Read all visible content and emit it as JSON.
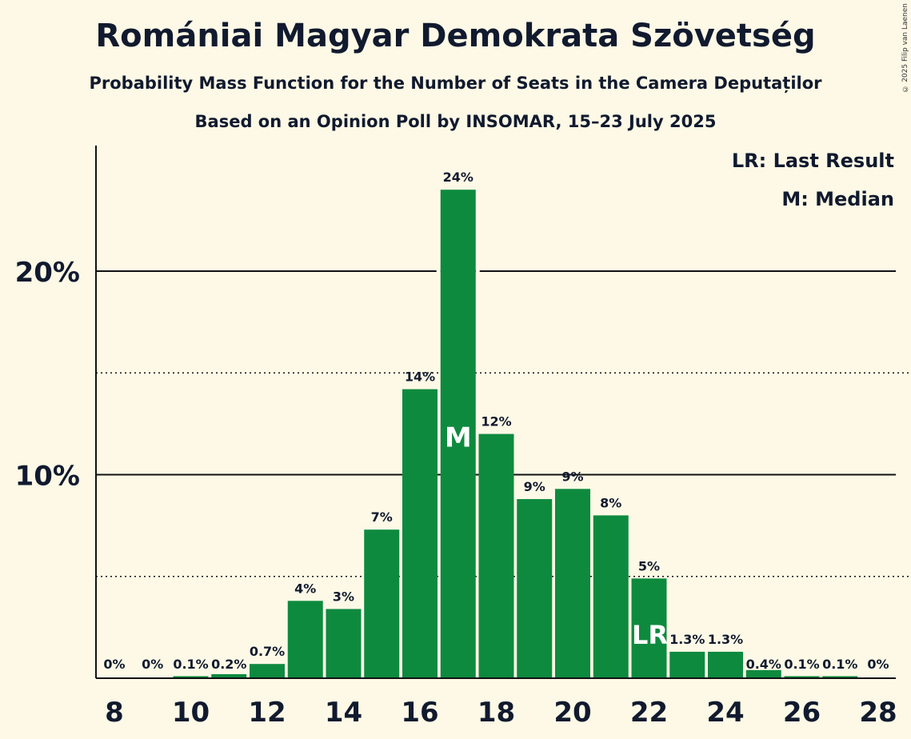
{
  "title": "Romániai Magyar Demokrata Szövetség",
  "subtitle1": "Probability Mass Function for the Number of Seats in the Camera Deputaților",
  "subtitle2": "Based on an Opinion Poll by INSOMAR, 15–23 July 2025",
  "copyright": "© 2025 Filip van Laenen",
  "legend": {
    "lr": "LR: Last Result",
    "m": "M: Median"
  },
  "colors": {
    "bar": "#0e8a3f",
    "background": "#fdf9e6",
    "text": "#111a2e"
  },
  "chart_data": {
    "type": "bar",
    "x": [
      8,
      9,
      10,
      11,
      12,
      13,
      14,
      15,
      16,
      17,
      18,
      19,
      20,
      21,
      22,
      23,
      24,
      25,
      26,
      27,
      28
    ],
    "values": [
      0,
      0,
      0.1,
      0.2,
      0.7,
      3.8,
      3.4,
      7.3,
      14.2,
      24.0,
      12.0,
      8.8,
      9.3,
      8.0,
      4.9,
      1.3,
      1.3,
      0.4,
      0.1,
      0.1,
      0
    ],
    "labels": [
      "0%",
      "0%",
      "0.1%",
      "0.2%",
      "0.7%",
      "4%",
      "3%",
      "7%",
      "14%",
      "24%",
      "12%",
      "9%",
      "9%",
      "8%",
      "5%",
      "1.3%",
      "1.3%",
      "0.4%",
      "0.1%",
      "0.1%",
      "0%"
    ],
    "xticks": [
      "8",
      "10",
      "12",
      "14",
      "16",
      "18",
      "20",
      "22",
      "24",
      "26",
      "28"
    ],
    "yticks": [
      "10%",
      "20%"
    ],
    "ylim": [
      0,
      26
    ],
    "median": 17,
    "median_label": "M",
    "last_result": 22,
    "last_result_label": "LR",
    "gridlines_dotted": [
      5,
      15
    ],
    "gridlines_solid": [
      10,
      20
    ]
  }
}
